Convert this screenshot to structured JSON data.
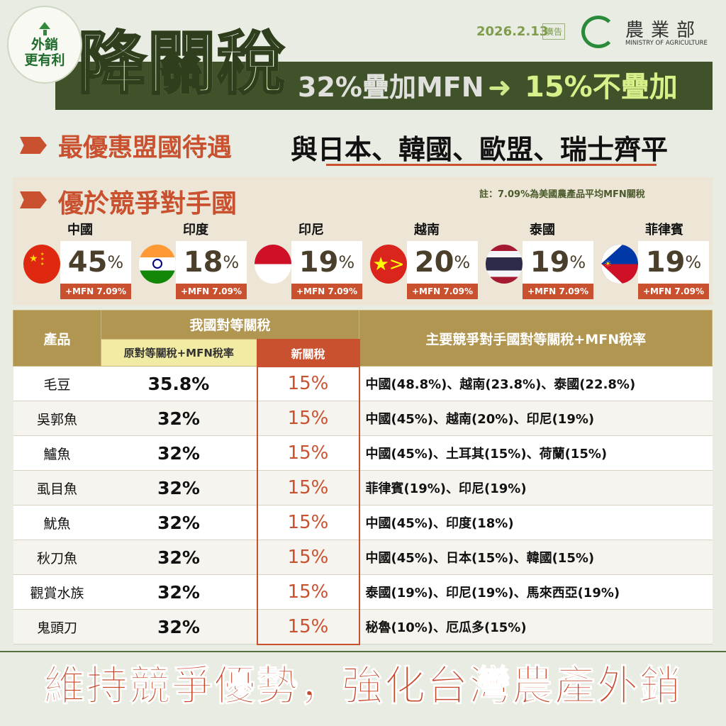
{
  "badge": {
    "line1": "外銷",
    "line2": "更有利",
    "icon": "up-arrow-icon"
  },
  "header": {
    "date": "2026.2.13",
    "ad_label": "廣告",
    "logo_name": "農業部",
    "logo_en": "MINISTRY OF AGRICULTURE",
    "title": "降關稅",
    "old": "32%疊加MFN",
    "arrow": "➜",
    "new": "15%不疊加"
  },
  "mfn": {
    "label": "最優惠盟國待遇",
    "text": "與日本、韓國、歐盟、瑞士齊平"
  },
  "competitors": {
    "title": "優於競爭對手國",
    "note": "註：7.09%為美國農產品平均MFN關稅",
    "countries": [
      {
        "name": "中國",
        "rate": "45",
        "unit": "%",
        "mfn": "+MFN 7.09%"
      },
      {
        "name": "印度",
        "rate": "18",
        "unit": "%",
        "mfn": "+MFN 7.09%"
      },
      {
        "name": "印尼",
        "rate": "19",
        "unit": "%",
        "mfn": "+MFN 7.09%"
      },
      {
        "name": "越南",
        "rate": "20",
        "unit": "%",
        "mfn": "+MFN 7.09%"
      },
      {
        "name": "泰國",
        "rate": "19",
        "unit": "%",
        "mfn": "+MFN 7.09%"
      },
      {
        "name": "菲律賓",
        "rate": "19",
        "unit": "%",
        "mfn": "+MFN 7.09%"
      }
    ]
  },
  "table": {
    "h_product": "產品",
    "h_ours": "我國對等關稅",
    "h_orig": "原對等關稅+MFN稅率",
    "h_new": "新關稅",
    "h_comp": "主要競爭對手國對等關稅+MFN稅率",
    "rows": [
      {
        "product": "毛豆",
        "orig": "35.8%",
        "new": "15%",
        "comp": "中國(48.8%)、越南(23.8%)、泰國(22.8%)"
      },
      {
        "product": "吳郭魚",
        "orig": "32%",
        "new": "15%",
        "comp": "中國(45%)、越南(20%)、印尼(19%)"
      },
      {
        "product": "鱸魚",
        "orig": "32%",
        "new": "15%",
        "comp": "中國(45%)、土耳其(15%)、荷蘭(15%)"
      },
      {
        "product": "虱目魚",
        "orig": "32%",
        "new": "15%",
        "comp": "菲律賓(19%)、印尼(19%)"
      },
      {
        "product": "魷魚",
        "orig": "32%",
        "new": "15%",
        "comp": "中國(45%)、印度(18%)"
      },
      {
        "product": "秋刀魚",
        "orig": "32%",
        "new": "15%",
        "comp": "中國(45%)、日本(15%)、韓國(15%)"
      },
      {
        "product": "觀賞水族",
        "orig": "32%",
        "new": "15%",
        "comp": "泰國(19%)、印尼(19%)、馬來西亞(19%)"
      },
      {
        "product": "鬼頭刀",
        "orig": "32%",
        "new": "15%",
        "comp": "秘魯(10%)、厄瓜多(15%)"
      }
    ]
  },
  "slogan": "維持競爭優勢，強化台灣農產外銷",
  "colors": {
    "accent": "#c9512f",
    "band": "#3f5229",
    "table_header": "#b09650",
    "highlight": "#f2eba3"
  }
}
